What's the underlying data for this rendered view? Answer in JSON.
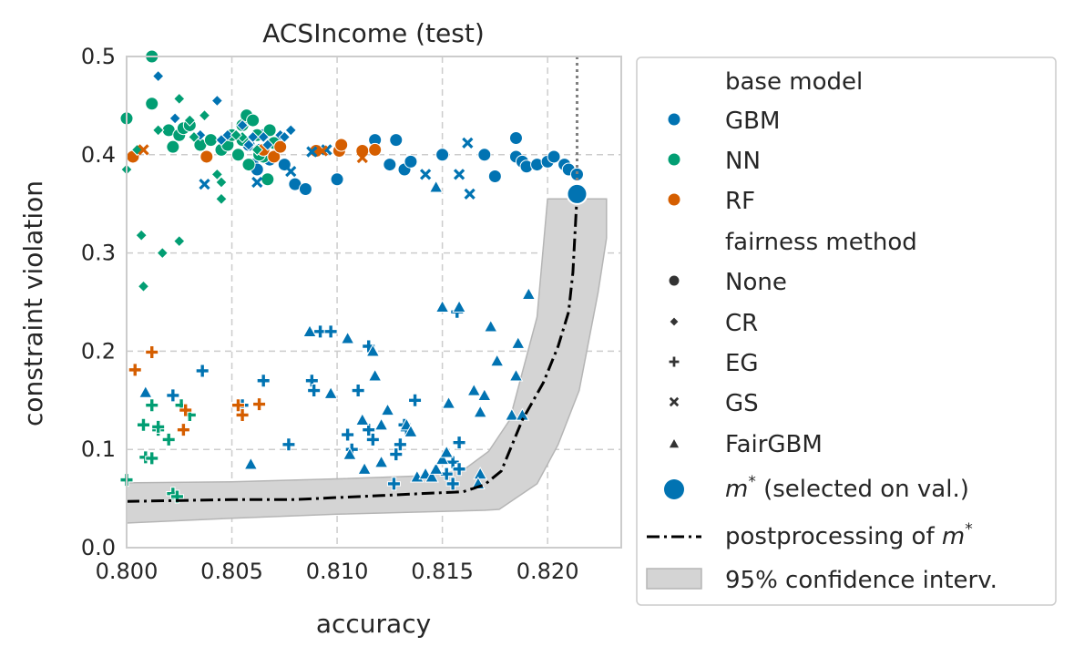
{
  "chart_data": {
    "type": "scatter",
    "title": "ACSIncome (test)",
    "xlabel": "accuracy",
    "ylabel": "constraint violation",
    "xlim": [
      0.8,
      0.8235
    ],
    "ylim": [
      0.0,
      0.5
    ],
    "xticks": [
      "0.800",
      "0.805",
      "0.810",
      "0.815",
      "0.820"
    ],
    "yticks": [
      "0.0",
      "0.1",
      "0.2",
      "0.3",
      "0.4",
      "0.5"
    ],
    "grid": true,
    "legend_position": "outside right",
    "colors": {
      "GBM": "#0173b2",
      "NN": "#029e73",
      "RF": "#d55e00",
      "band": "#d4d4d4",
      "grid": "#cccccc"
    },
    "legend": {
      "base_model_title": "base model",
      "base_models": [
        "GBM",
        "NN",
        "RF"
      ],
      "fairness_title": "fairness method",
      "fairness_methods": [
        "None",
        "CR",
        "EG",
        "GS",
        "FairGBM"
      ],
      "selected_label_math": "m",
      "selected_label_sup": "*",
      "selected_label_rest": " (selected on val.)",
      "postprocessing_label": "postprocessing of ",
      "postprocessing_math": "m",
      "postprocessing_sup": "*",
      "ci_label": "95% confidence interv."
    },
    "selected_point": {
      "x": 0.8214,
      "y": 0.36
    },
    "vertical_line_x": 0.8214,
    "postprocessing_curve": [
      [
        0.8,
        0.047
      ],
      [
        0.805,
        0.049
      ],
      [
        0.808,
        0.049
      ],
      [
        0.81,
        0.051
      ],
      [
        0.812,
        0.053
      ],
      [
        0.814,
        0.055
      ],
      [
        0.816,
        0.057
      ],
      [
        0.817,
        0.064
      ],
      [
        0.8178,
        0.078
      ],
      [
        0.8188,
        0.13
      ],
      [
        0.8198,
        0.168
      ],
      [
        0.8205,
        0.205
      ],
      [
        0.821,
        0.24
      ],
      [
        0.8212,
        0.28
      ],
      [
        0.8214,
        0.36
      ]
    ],
    "ci_upper": [
      [
        0.8,
        0.066
      ],
      [
        0.805,
        0.067
      ],
      [
        0.81,
        0.07
      ],
      [
        0.814,
        0.073
      ],
      [
        0.816,
        0.079
      ],
      [
        0.8172,
        0.098
      ],
      [
        0.8182,
        0.13
      ],
      [
        0.8195,
        0.235
      ],
      [
        0.82,
        0.355
      ],
      [
        0.8228,
        0.355
      ]
    ],
    "ci_lower": [
      [
        0.8228,
        0.355
      ],
      [
        0.8228,
        0.315
      ],
      [
        0.8224,
        0.26
      ],
      [
        0.8215,
        0.16
      ],
      [
        0.8205,
        0.105
      ],
      [
        0.8195,
        0.065
      ],
      [
        0.8177,
        0.039
      ],
      [
        0.817,
        0.038
      ],
      [
        0.81,
        0.034
      ],
      [
        0.805,
        0.03
      ],
      [
        0.8,
        0.025
      ]
    ],
    "series": [
      {
        "name": "GBM",
        "method": "None",
        "points": [
          [
            0.8058,
            0.41
          ],
          [
            0.806,
            0.39
          ],
          [
            0.8063,
            0.405
          ],
          [
            0.8065,
            0.42
          ],
          [
            0.8068,
            0.395
          ],
          [
            0.8062,
            0.385
          ],
          [
            0.8075,
            0.39
          ],
          [
            0.808,
            0.37
          ],
          [
            0.8085,
            0.365
          ],
          [
            0.81,
            0.375
          ],
          [
            0.8118,
            0.415
          ],
          [
            0.8128,
            0.415
          ],
          [
            0.8125,
            0.39
          ],
          [
            0.8132,
            0.385
          ],
          [
            0.8135,
            0.393
          ],
          [
            0.815,
            0.4
          ],
          [
            0.817,
            0.4
          ],
          [
            0.8175,
            0.378
          ],
          [
            0.8185,
            0.398
          ],
          [
            0.8185,
            0.417
          ],
          [
            0.8188,
            0.393
          ],
          [
            0.819,
            0.388
          ],
          [
            0.8195,
            0.39
          ],
          [
            0.82,
            0.393
          ],
          [
            0.8203,
            0.398
          ],
          [
            0.8208,
            0.39
          ],
          [
            0.821,
            0.385
          ],
          [
            0.8214,
            0.38
          ]
        ]
      },
      {
        "name": "NN",
        "method": "None",
        "points": [
          [
            0.8,
            0.437
          ],
          [
            0.8012,
            0.452
          ],
          [
            0.8012,
            0.5
          ],
          [
            0.802,
            0.425
          ],
          [
            0.8025,
            0.42
          ],
          [
            0.8027,
            0.427
          ],
          [
            0.803,
            0.43
          ],
          [
            0.8035,
            0.41
          ],
          [
            0.804,
            0.415
          ],
          [
            0.8045,
            0.405
          ],
          [
            0.8048,
            0.41
          ],
          [
            0.805,
            0.42
          ],
          [
            0.8053,
            0.4
          ],
          [
            0.8055,
            0.43
          ],
          [
            0.8057,
            0.44
          ],
          [
            0.8062,
            0.42
          ],
          [
            0.8065,
            0.398
          ],
          [
            0.8068,
            0.425
          ],
          [
            0.807,
            0.412
          ],
          [
            0.806,
            0.435
          ],
          [
            0.8063,
            0.4
          ],
          [
            0.8055,
            0.415
          ],
          [
            0.8022,
            0.408
          ],
          [
            0.8067,
            0.375
          ],
          [
            0.8058,
            0.39
          ]
        ]
      },
      {
        "name": "RF",
        "method": "None",
        "points": [
          [
            0.8003,
            0.398
          ],
          [
            0.8065,
            0.405
          ],
          [
            0.807,
            0.398
          ],
          [
            0.8073,
            0.408
          ],
          [
            0.809,
            0.404
          ],
          [
            0.8101,
            0.404
          ],
          [
            0.8102,
            0.41
          ],
          [
            0.8112,
            0.404
          ],
          [
            0.8118,
            0.405
          ],
          [
            0.8038,
            0.398
          ]
        ]
      },
      {
        "name": "GBM",
        "method": "CR",
        "points": [
          [
            0.8015,
            0.48
          ],
          [
            0.8023,
            0.437
          ],
          [
            0.8043,
            0.455
          ],
          [
            0.8048,
            0.42
          ],
          [
            0.8055,
            0.43
          ],
          [
            0.8065,
            0.418
          ],
          [
            0.8073,
            0.42
          ],
          [
            0.8075,
            0.418
          ],
          [
            0.8078,
            0.425
          ],
          [
            0.8035,
            0.42
          ],
          [
            0.8045,
            0.415
          ],
          [
            0.8058,
            0.41
          ],
          [
            0.8067,
            0.41
          ],
          [
            0.806,
            0.418
          ]
        ]
      },
      {
        "name": "NN",
        "method": "CR",
        "points": [
          [
            0.8,
            0.385
          ],
          [
            0.8005,
            0.405
          ],
          [
            0.8015,
            0.425
          ],
          [
            0.8025,
            0.457
          ],
          [
            0.803,
            0.435
          ],
          [
            0.8037,
            0.44
          ],
          [
            0.8043,
            0.38
          ],
          [
            0.8045,
            0.372
          ],
          [
            0.8045,
            0.355
          ],
          [
            0.8055,
            0.418
          ],
          [
            0.8062,
            0.405
          ],
          [
            0.8007,
            0.318
          ],
          [
            0.8017,
            0.3
          ],
          [
            0.8025,
            0.312
          ],
          [
            0.8008,
            0.266
          ],
          [
            0.8032,
            0.418
          ],
          [
            0.8052,
            0.42
          ]
        ]
      },
      {
        "name": "RF",
        "method": "CR",
        "points": []
      },
      {
        "name": "GBM",
        "method": "EG",
        "points": [
          [
            0.8036,
            0.18
          ],
          [
            0.8022,
            0.155
          ],
          [
            0.8028,
            0.14
          ],
          [
            0.8055,
            0.145
          ],
          [
            0.8065,
            0.17
          ],
          [
            0.8077,
            0.105
          ],
          [
            0.8088,
            0.17
          ],
          [
            0.8089,
            0.16
          ],
          [
            0.8092,
            0.22
          ],
          [
            0.8097,
            0.22
          ],
          [
            0.8105,
            0.115
          ],
          [
            0.8107,
            0.1
          ],
          [
            0.811,
            0.16
          ],
          [
            0.8115,
            0.12
          ],
          [
            0.8117,
            0.11
          ],
          [
            0.8115,
            0.205
          ],
          [
            0.8127,
            0.065
          ],
          [
            0.8128,
            0.095
          ],
          [
            0.813,
            0.105
          ],
          [
            0.8132,
            0.125
          ],
          [
            0.8133,
            0.12
          ],
          [
            0.8137,
            0.15
          ],
          [
            0.8152,
            0.075
          ],
          [
            0.8155,
            0.065
          ],
          [
            0.8155,
            0.087
          ],
          [
            0.8157,
            0.24
          ],
          [
            0.8158,
            0.107
          ],
          [
            0.8158,
            0.08
          ]
        ]
      },
      {
        "name": "NN",
        "method": "EG",
        "points": [
          [
            0.8,
            0.069
          ],
          [
            0.8008,
            0.125
          ],
          [
            0.8009,
            0.092
          ],
          [
            0.8012,
            0.091
          ],
          [
            0.8012,
            0.145
          ],
          [
            0.8015,
            0.12
          ],
          [
            0.802,
            0.11
          ],
          [
            0.8022,
            0.055
          ],
          [
            0.8024,
            0.052
          ],
          [
            0.8026,
            0.145
          ],
          [
            0.803,
            0.135
          ],
          [
            0.8015,
            0.123
          ]
        ]
      },
      {
        "name": "RF",
        "method": "EG",
        "points": [
          [
            0.8004,
            0.181
          ],
          [
            0.8012,
            0.199
          ],
          [
            0.8027,
            0.12
          ],
          [
            0.8028,
            0.14
          ],
          [
            0.8053,
            0.145
          ],
          [
            0.8055,
            0.135
          ],
          [
            0.8063,
            0.146
          ]
        ]
      },
      {
        "name": "GBM",
        "method": "GS",
        "points": [
          [
            0.8037,
            0.37
          ],
          [
            0.8062,
            0.372
          ],
          [
            0.8078,
            0.383
          ],
          [
            0.8088,
            0.403
          ],
          [
            0.8095,
            0.405
          ],
          [
            0.8142,
            0.38
          ],
          [
            0.8162,
            0.412
          ],
          [
            0.8158,
            0.38
          ],
          [
            0.8163,
            0.36
          ]
        ]
      },
      {
        "name": "RF",
        "method": "GS",
        "points": [
          [
            0.8008,
            0.405
          ],
          [
            0.8093,
            0.404
          ],
          [
            0.8112,
            0.397
          ]
        ]
      },
      {
        "name": "GBM",
        "method": "FairGBM",
        "points": [
          [
            0.8009,
            0.158
          ],
          [
            0.8059,
            0.085
          ],
          [
            0.8087,
            0.22
          ],
          [
            0.8097,
            0.157
          ],
          [
            0.8105,
            0.213
          ],
          [
            0.8106,
            0.095
          ],
          [
            0.8112,
            0.13
          ],
          [
            0.8113,
            0.08
          ],
          [
            0.8117,
            0.2
          ],
          [
            0.8118,
            0.175
          ],
          [
            0.8121,
            0.087
          ],
          [
            0.8121,
            0.125
          ],
          [
            0.8124,
            0.14
          ],
          [
            0.8133,
            0.125
          ],
          [
            0.8135,
            0.118
          ],
          [
            0.8138,
            0.072
          ],
          [
            0.8142,
            0.075
          ],
          [
            0.8145,
            0.072
          ],
          [
            0.8147,
            0.08
          ],
          [
            0.815,
            0.09
          ],
          [
            0.8152,
            0.097
          ],
          [
            0.8153,
            0.147
          ],
          [
            0.8147,
            0.367
          ],
          [
            0.815,
            0.245
          ],
          [
            0.8158,
            0.245
          ],
          [
            0.8165,
            0.16
          ],
          [
            0.8168,
            0.138
          ],
          [
            0.8168,
            0.075
          ],
          [
            0.817,
            0.155
          ],
          [
            0.8173,
            0.225
          ],
          [
            0.8176,
            0.19
          ],
          [
            0.8183,
            0.135
          ],
          [
            0.8185,
            0.175
          ],
          [
            0.8186,
            0.208
          ],
          [
            0.8188,
            0.135
          ],
          [
            0.8191,
            0.258
          ],
          [
            0.8167,
            0.065
          ]
        ]
      }
    ]
  }
}
